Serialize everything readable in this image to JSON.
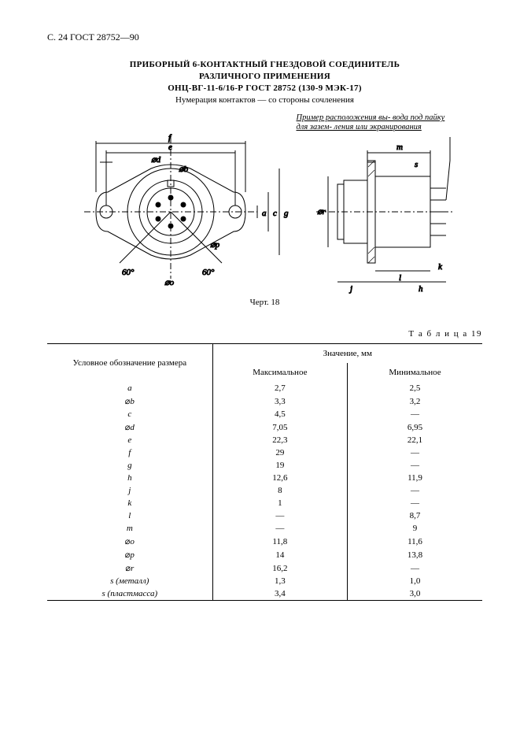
{
  "page_header": "С. 24 ГОСТ 28752—90",
  "title": {
    "line1": "ПРИБОРНЫЙ 6-КОНТАКТНЫЙ ГНЕЗДОВОЙ СОЕДИНИТЕЛЬ",
    "line2": "РАЗЛИЧНОГО ПРИМЕНЕНИЯ",
    "line3": "ОНЦ-ВГ-11-6/16-Р ГОСТ 28752 (130-9 МЭК-17)",
    "subline": "Нумерация контактов — со стороны сочленения"
  },
  "figure": {
    "note": "Пример расположения вы-\nвода под пайку для зазем-\nления или экранирования",
    "caption": "Черт. 18",
    "labels": {
      "f": "f",
      "e": "e",
      "d": "⌀d",
      "b": "⌀b",
      "a": "a",
      "o": "⌀o",
      "c": "c",
      "g": "g",
      "p": "⌀p",
      "ang60": "60°",
      "m": "m",
      "s": "s",
      "r": "⌀r",
      "l": "l",
      "h": "h",
      "j": "j",
      "k": "k"
    }
  },
  "table": {
    "label": "Т а б л и ц а  19",
    "header": {
      "dim": "Условное обозначение размера",
      "value": "Значение, мм",
      "max": "Максимальное",
      "min": "Минимальное"
    },
    "rows": [
      {
        "dim": "a",
        "italic": true,
        "diam": false,
        "max": "2,7",
        "min": "2,5"
      },
      {
        "dim": "b",
        "italic": true,
        "diam": true,
        "max": "3,3",
        "min": "3,2"
      },
      {
        "dim": "c",
        "italic": true,
        "diam": false,
        "max": "4,5",
        "min": "—"
      },
      {
        "dim": "d",
        "italic": true,
        "diam": true,
        "max": "7,05",
        "min": "6,95"
      },
      {
        "dim": "e",
        "italic": true,
        "diam": false,
        "max": "22,3",
        "min": "22,1"
      },
      {
        "dim": "f",
        "italic": true,
        "diam": false,
        "max": "29",
        "min": "—"
      },
      {
        "dim": "g",
        "italic": true,
        "diam": false,
        "max": "19",
        "min": "—"
      },
      {
        "dim": "h",
        "italic": true,
        "diam": false,
        "max": "12,6",
        "min": "11,9"
      },
      {
        "dim": "j",
        "italic": true,
        "diam": false,
        "max": "8",
        "min": "—"
      },
      {
        "dim": "k",
        "italic": true,
        "diam": false,
        "max": "1",
        "min": "—"
      },
      {
        "dim": "l",
        "italic": true,
        "diam": false,
        "max": "—",
        "min": "8,7"
      },
      {
        "dim": "m",
        "italic": true,
        "diam": false,
        "max": "—",
        "min": "9"
      },
      {
        "dim": "o",
        "italic": true,
        "diam": true,
        "max": "11,8",
        "min": "11,6"
      },
      {
        "dim": "p",
        "italic": true,
        "diam": true,
        "max": "14",
        "min": "13,8"
      },
      {
        "dim": "r",
        "italic": true,
        "diam": true,
        "max": "16,2",
        "min": "—"
      },
      {
        "dim": "s (металл)",
        "italic": true,
        "diam": false,
        "max": "1,3",
        "min": "1,0"
      },
      {
        "dim": "s (пластмасса)",
        "italic": true,
        "diam": false,
        "max": "3,4",
        "min": "3,0"
      }
    ]
  },
  "style": {
    "stroke": "#000000",
    "fill_hatch": "#000000",
    "bg": "#ffffff"
  }
}
